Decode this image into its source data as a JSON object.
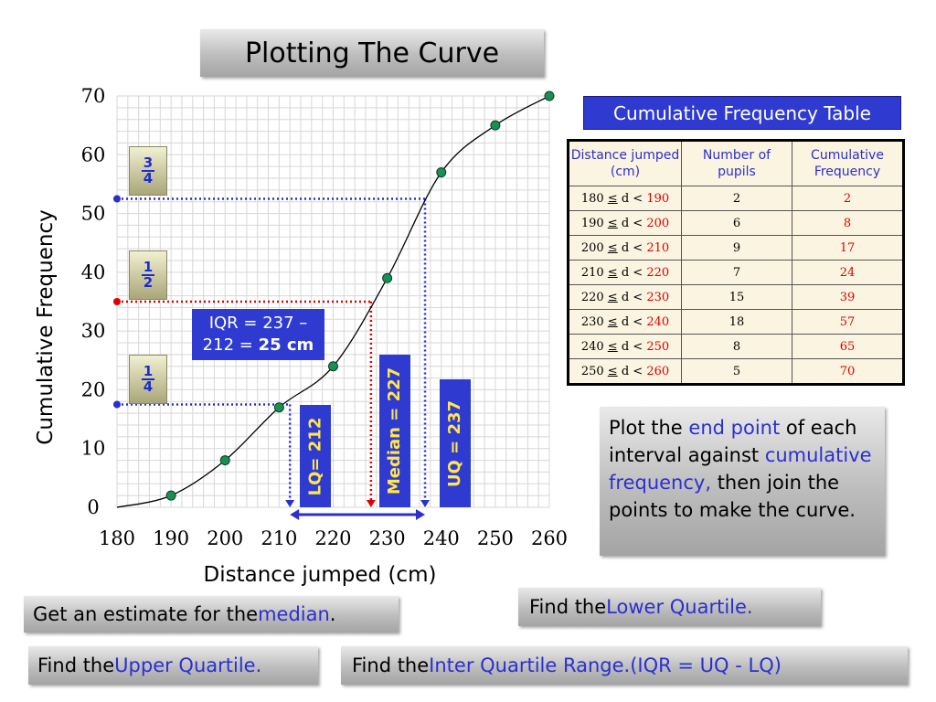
{
  "title": "Plotting The Curve",
  "chart_data": {
    "type": "line",
    "x": [
      180,
      190,
      200,
      210,
      220,
      230,
      240,
      250,
      260
    ],
    "values": [
      0,
      2,
      8,
      17,
      24,
      39,
      57,
      65,
      70
    ],
    "xticks": [
      "180",
      "190",
      "200",
      "210",
      "220",
      "230",
      "240",
      "250",
      "260"
    ],
    "yticks": [
      "0",
      "10",
      "20",
      "30",
      "40",
      "50",
      "60",
      "70"
    ],
    "xlim": [
      180,
      260
    ],
    "ylim": [
      0,
      70
    ],
    "xlabel": "Distance jumped (cm)",
    "ylabel": "Cumulative Frequency",
    "grid": true,
    "quartiles": {
      "lower_quartile": 212,
      "median": 227,
      "upper_quartile": 237
    },
    "quartile_levels": {
      "quarter": 17.5,
      "half": 35,
      "three_quarters": 52.5
    }
  },
  "fractions": {
    "three_quarters": {
      "num": "3",
      "den": "4"
    },
    "half": {
      "num": "1",
      "den": "2"
    },
    "quarter": {
      "num": "1",
      "den": "4"
    }
  },
  "iqr_box": {
    "line1": "IQR  = 237 –",
    "line2": "212 = ",
    "result": "25 cm"
  },
  "labels": {
    "lq": "LQ= 212",
    "median": "Median =  227",
    "uq": "UQ = 237"
  },
  "table": {
    "title": "Cumulative Frequency Table",
    "headers": [
      "Distance jumped (cm)",
      "Number of pupils",
      "Cumulative Frequency"
    ],
    "rows": [
      {
        "lower": "180",
        "sym": "≤",
        "upper": "190",
        "pupils": "2",
        "cf": "2"
      },
      {
        "lower": "190",
        "sym": "≤",
        "upper": "200",
        "pupils": "6",
        "cf": "8"
      },
      {
        "lower": "200",
        "sym": "≤",
        "upper": "210",
        "pupils": "9",
        "cf": "17"
      },
      {
        "lower": "210",
        "sym": "≤",
        "upper": "220",
        "pupils": "7",
        "cf": "24"
      },
      {
        "lower": "220",
        "sym": "≤",
        "upper": "230",
        "pupils": "15",
        "cf": "39"
      },
      {
        "lower": "230",
        "sym": "≤",
        "upper": "240",
        "pupils": "18",
        "cf": "57"
      },
      {
        "lower": "240",
        "sym": "≤",
        "upper": "250",
        "pupils": "8",
        "cf": "65"
      },
      {
        "lower": "250",
        "sym": "≤",
        "upper": "260",
        "pupils": "5",
        "cf": "70"
      }
    ],
    "var": "d"
  },
  "instructions": {
    "plot": {
      "t1": "Plot the ",
      "h1": "end point",
      "t2": " of each interval against ",
      "h2": "cumulative frequency,",
      "t3": " then join the points to make the curve."
    },
    "median": {
      "t1": "Get an estimate for the ",
      "h1": "median",
      "t2": "."
    },
    "lq": {
      "t1": "Find the ",
      "h1": "Lower Quartile."
    },
    "uq": {
      "t1": "Find the ",
      "h1": "Upper Quartile."
    },
    "iqr": {
      "t1": "Find the ",
      "h1": "Inter Quartile Range.(IQR = UQ - LQ)"
    }
  },
  "colors": {
    "point": "#1a8f55",
    "blue_guide": "#2b2fcf",
    "red_guide": "#e00000",
    "box_blue": "#2f3bd0",
    "label_yellow": "#ffe64a"
  }
}
